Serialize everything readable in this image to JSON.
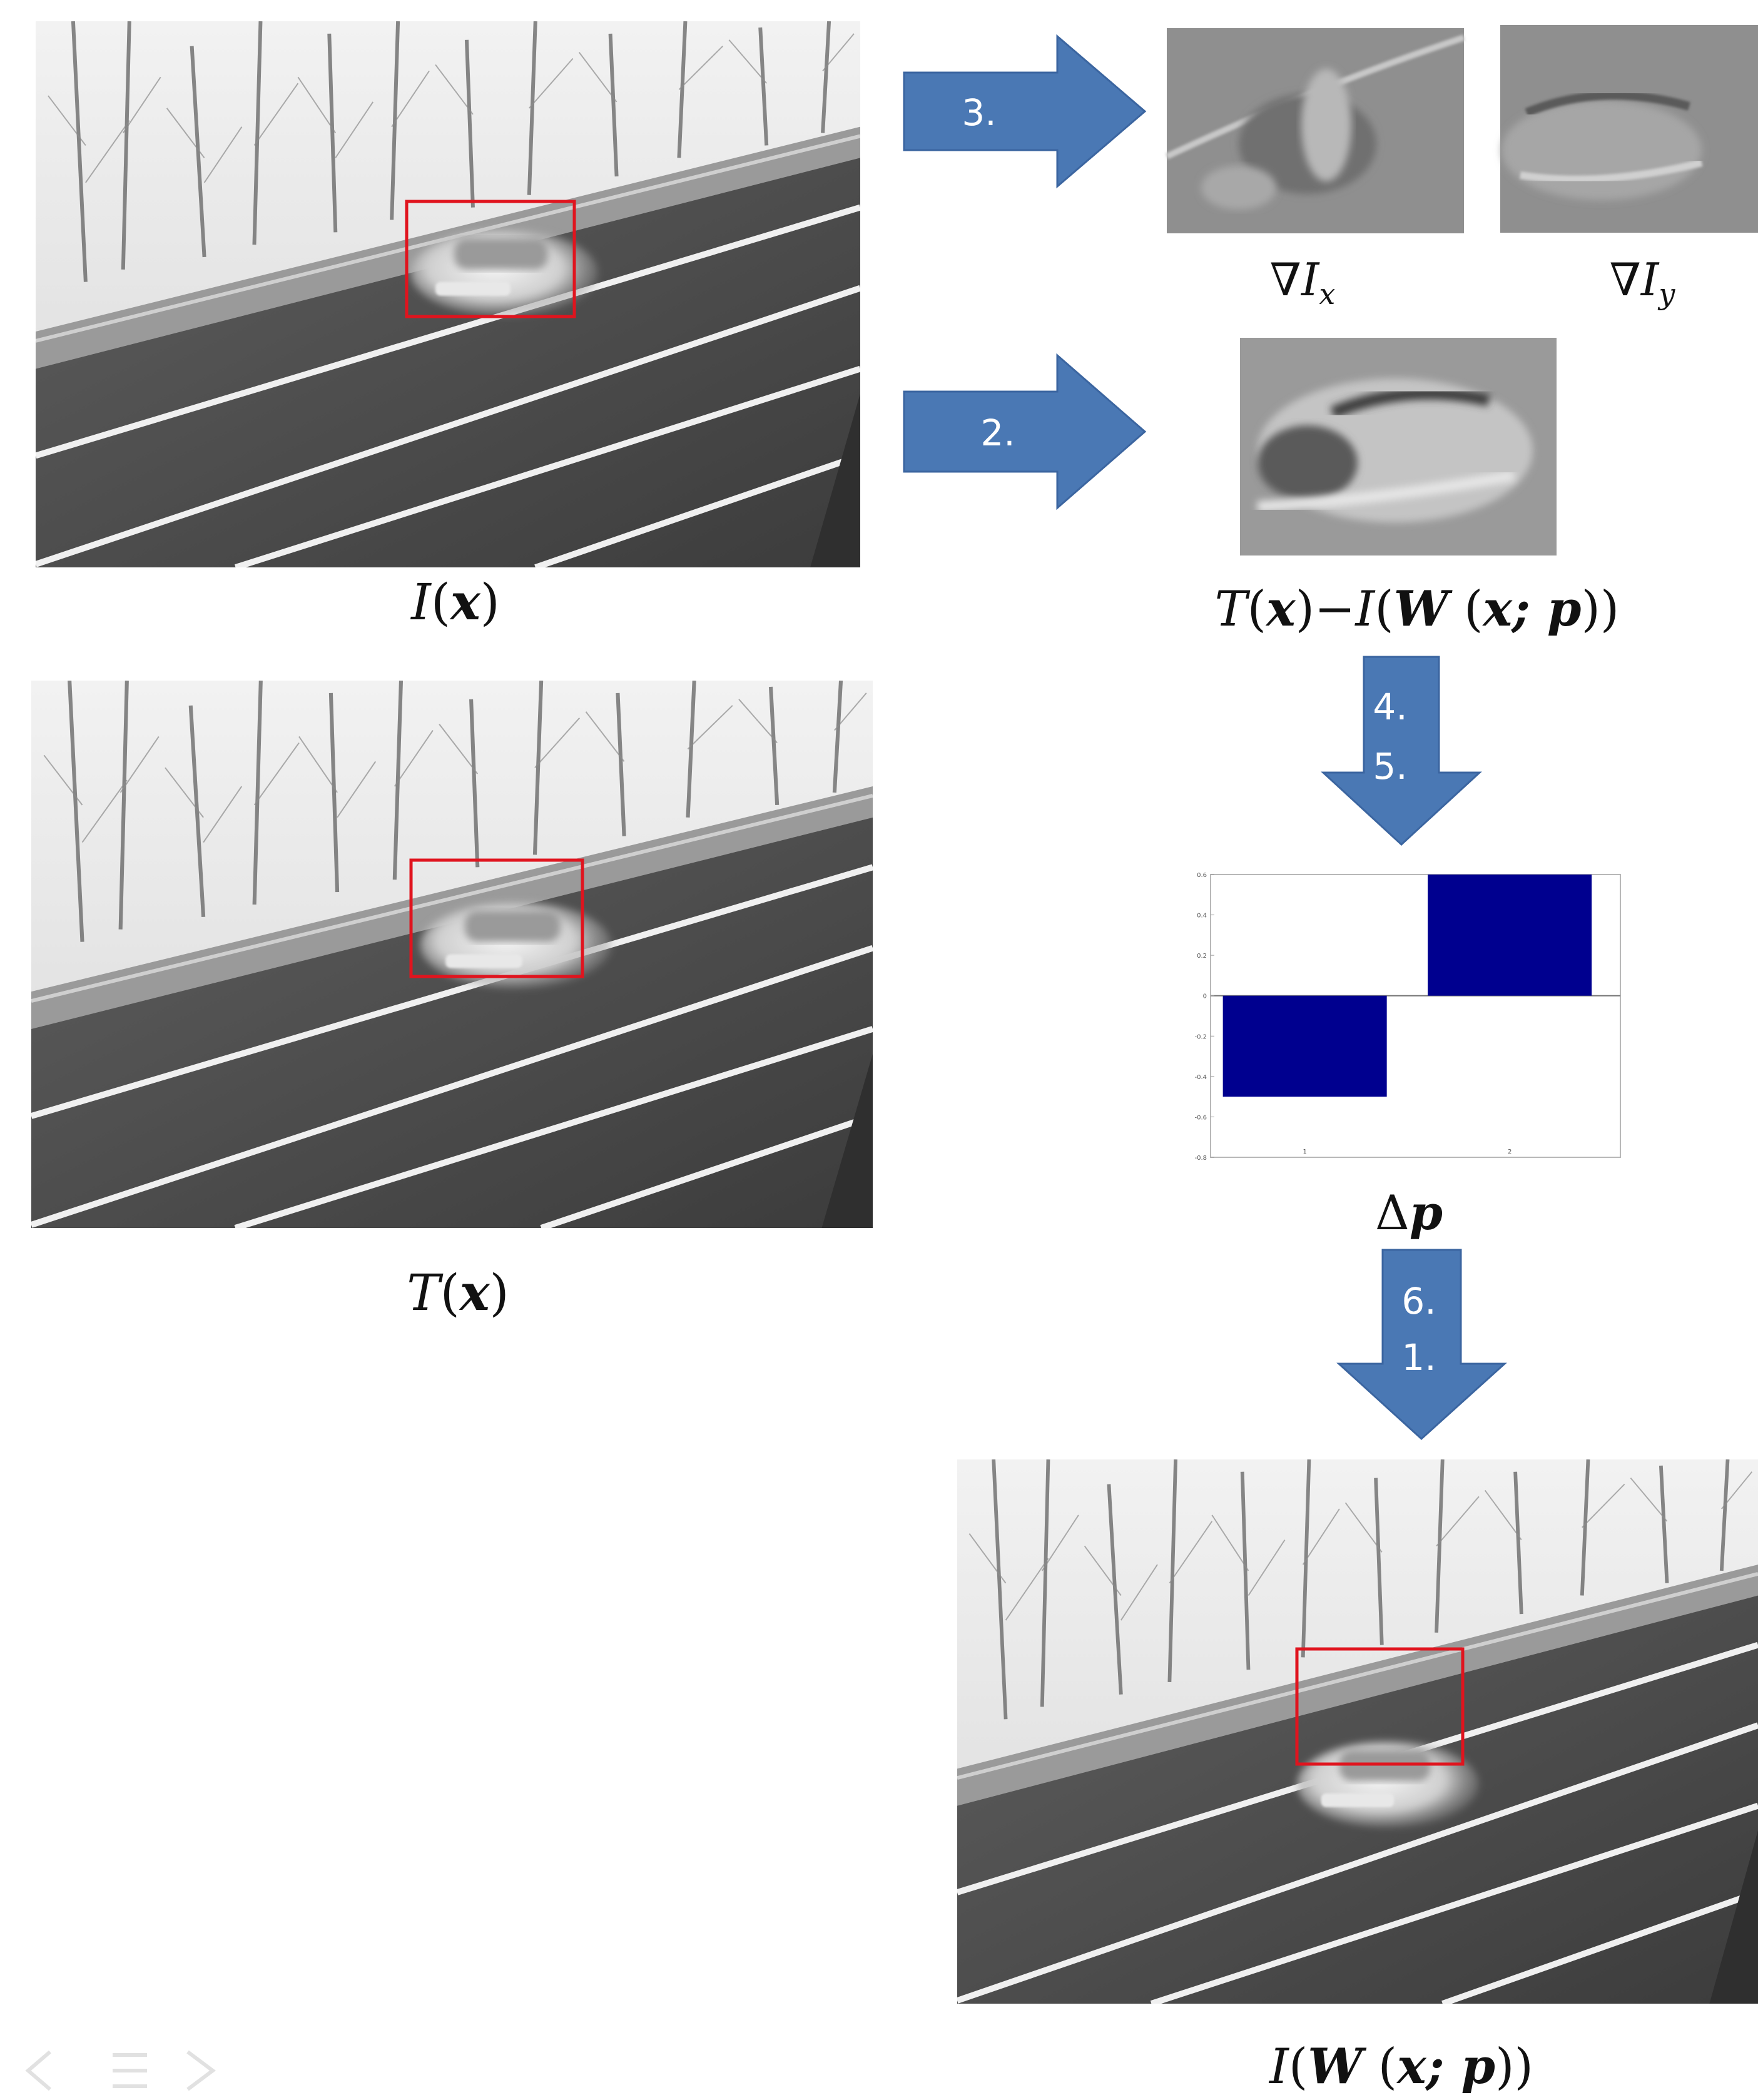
{
  "photos": {
    "input": {
      "label": "I(x)"
    },
    "template": {
      "label": "T(x)"
    },
    "warped": {
      "label": "I(W(x;p))"
    }
  },
  "gradients": {
    "x": {
      "label": "∇Iₓ"
    },
    "y": {
      "label": "∇I_y"
    }
  },
  "error_image": {
    "label": "T(x) − I(W(x;p))"
  },
  "steps": {
    "a": {
      "text": "3."
    },
    "b": {
      "text": "2."
    },
    "c1": {
      "text": "4."
    },
    "c2": {
      "text": "5."
    },
    "d1": {
      "text": "6."
    },
    "d2": {
      "text": "1."
    }
  },
  "colors": {
    "arrow": "#4a78b4",
    "arrow_edge": "#3b65a0",
    "box": "#e0141e",
    "bar": "#00008f"
  },
  "chart_data": {
    "type": "bar",
    "label": "Δp",
    "categories": [
      "1",
      "2"
    ],
    "values": [
      -0.5,
      0.6
    ],
    "ylim": [
      -0.8,
      0.6
    ],
    "yticks": [
      "0.6",
      "0.4",
      "0.2",
      "0",
      "-0.2",
      "-0.4",
      "-0.6",
      "-0.8"
    ],
    "xticks": [
      "1",
      "2"
    ],
    "grid": false
  }
}
